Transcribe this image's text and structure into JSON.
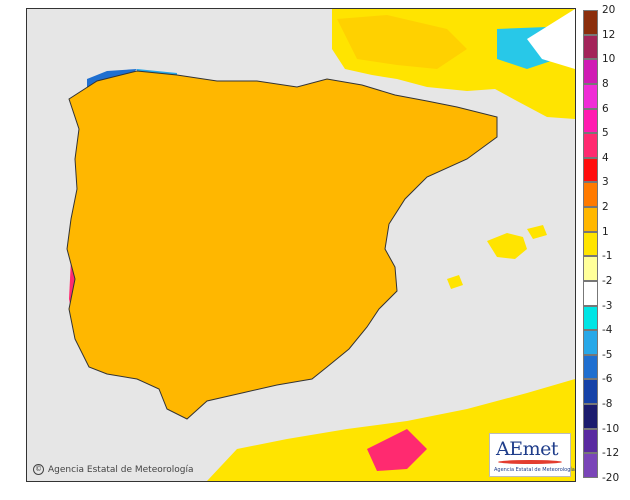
{
  "map": {
    "copyright_text": "Agencia Estatal de Meteorología",
    "logo": {
      "wordmark": "AEmet",
      "tagline": "Agencia Estatal de Meteorología"
    }
  },
  "legend": {
    "labels": [
      "20",
      "12",
      "10",
      "8",
      "6",
      "5",
      "4",
      "3",
      "2",
      "1",
      "-1",
      "-2",
      "-3",
      "-4",
      "-5",
      "-6",
      "-8",
      "-10",
      "-12",
      "-20"
    ],
    "colors": [
      "#8b2e0c",
      "#a3245a",
      "#d01bb4",
      "#f02cd6",
      "#ff1bb0",
      "#ff2a70",
      "#ff0d0d",
      "#ff7a00",
      "#ffb700",
      "#ffe400",
      "#ffff9a",
      "#ffffff",
      "#00e5e5",
      "#28a8e8",
      "#1f6fd0",
      "#1642a8",
      "#1c1c6e",
      "#5a2aa0",
      "#7a45b8",
      "#9a6cc8",
      "#b68ad4"
    ],
    "bins_ref": "colour of each band between consecutive labels, top to bottom"
  }
}
